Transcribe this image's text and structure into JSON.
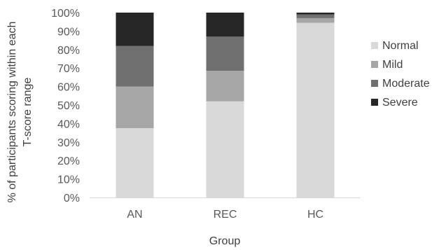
{
  "chart_data": {
    "type": "bar",
    "stacked": true,
    "percent_stacked": true,
    "categories": [
      "AN",
      "REC",
      "HC"
    ],
    "series": [
      {
        "name": "Normal",
        "color": "#d9d9d9",
        "values": [
          37.5,
          52,
          94.5
        ]
      },
      {
        "name": "Mild",
        "color": "#a6a6a6",
        "values": [
          22.5,
          16.5,
          2.5
        ]
      },
      {
        "name": "Moderate",
        "color": "#707070",
        "values": [
          22,
          18.5,
          2
        ]
      },
      {
        "name": "Severe",
        "color": "#262626",
        "values": [
          18,
          13,
          1
        ]
      }
    ],
    "y_ticks": [
      "0%",
      "10%",
      "20%",
      "30%",
      "40%",
      "50%",
      "60%",
      "70%",
      "80%",
      "90%",
      "100%"
    ],
    "ylim": [
      0,
      100
    ],
    "xlabel": "Group",
    "ylabel_lines": [
      "% of participants scoring within each",
      "T-score range"
    ],
    "legend_position": "right",
    "grid": false
  }
}
